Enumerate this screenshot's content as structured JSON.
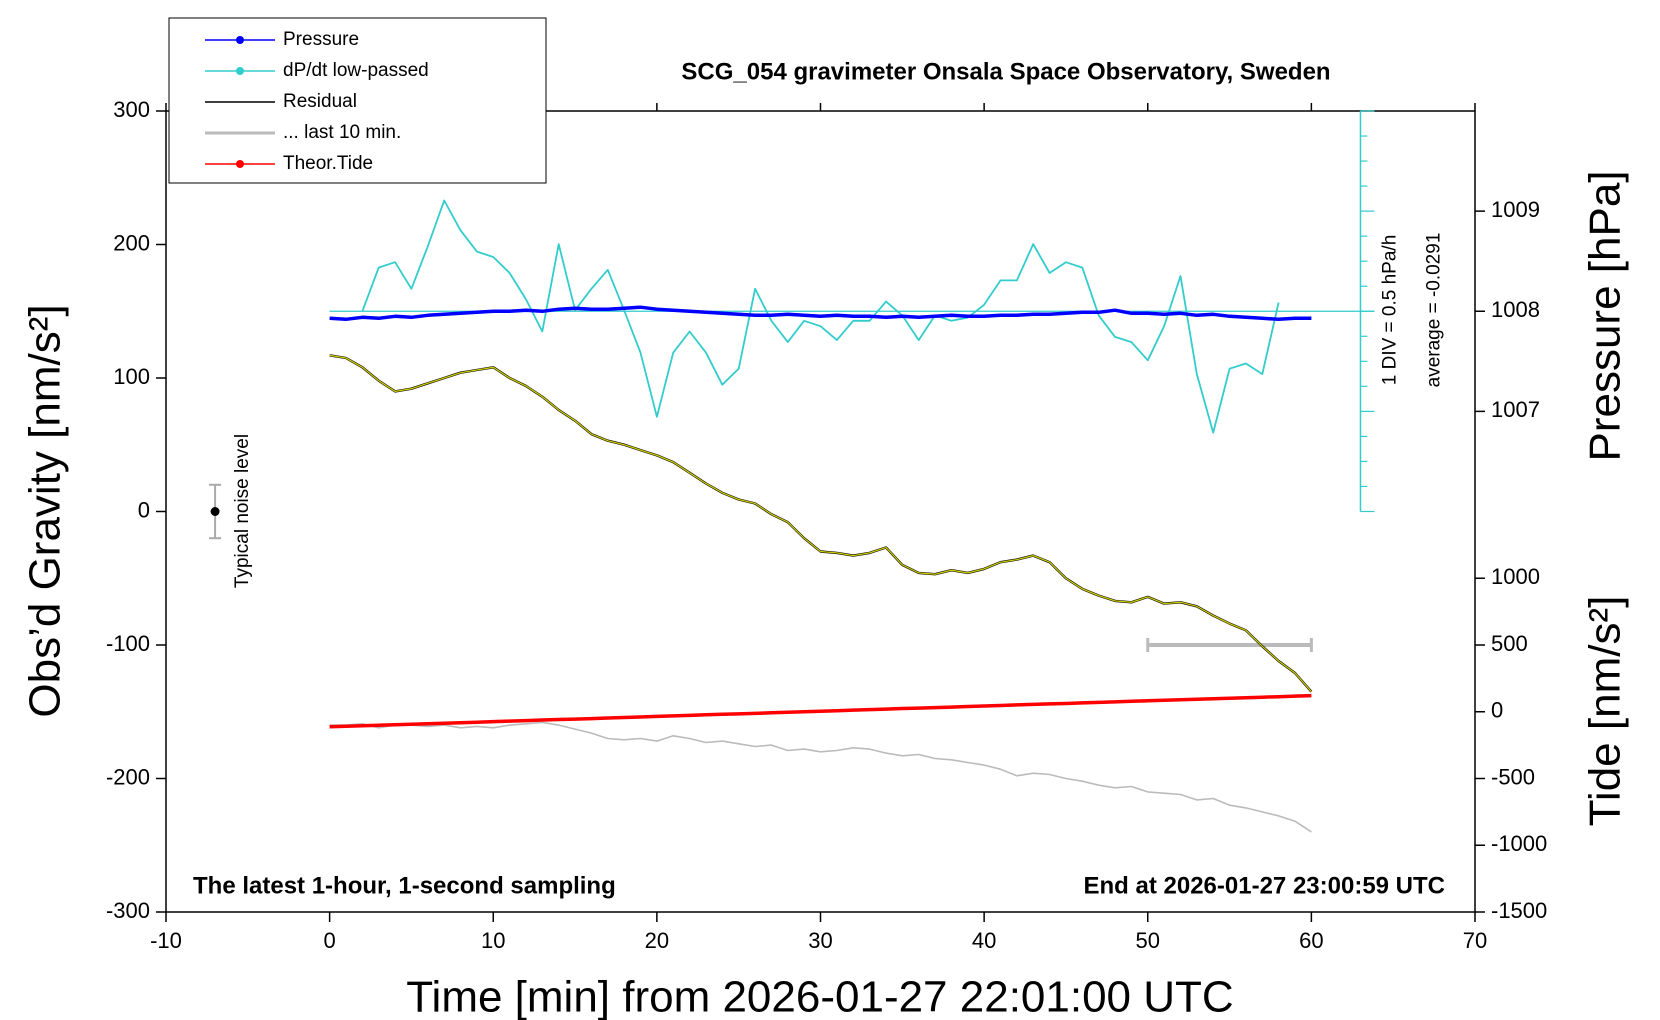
{
  "chart_data": {
    "type": "line",
    "title": "SCG_054 gravimeter Onsala Space Observatory, Sweden",
    "xlabel": "Time [min] from 2026-01-27 22:01:00 UTC",
    "ylabel": "Obs’d Gravity [nm/s²]",
    "y2label": "Pressure [hPa]",
    "y3label": "Tide [nm/s²]",
    "xlim": [
      -10,
      70
    ],
    "xticks": [
      -10,
      0,
      10,
      20,
      30,
      40,
      50,
      60,
      70
    ],
    "ylim": [
      -300,
      300
    ],
    "yticks": [
      -300,
      -200,
      -100,
      0,
      100,
      200,
      300
    ],
    "y2lim": [
      1006,
      1010
    ],
    "y2ticks": [
      1007,
      1008,
      1009
    ],
    "y3lim": [
      -1500,
      1500
    ],
    "y3ticks": [
      -1500,
      -1000,
      -500,
      0,
      500,
      1000
    ],
    "y4lim": [
      -1.0291,
      0.9709
    ],
    "y4_axis_x": 63,
    "y4_division_note": "1 DIV = 0.5 hPa/h",
    "y4_average": {
      "value": -0.0291,
      "label": "average = -0.0291"
    },
    "noise_level": {
      "x": -7,
      "value": 0,
      "error": 20,
      "label": "Typical noise level"
    },
    "last_10min": {
      "name": "... last 10 min.",
      "color": "#bbbbbb",
      "x": [
        50,
        60
      ],
      "y": -100
    },
    "note_left": "The latest 1-hour, 1-second sampling",
    "note_right": "End at 2026-01-27 23:00:59 UTC",
    "x": [
      0,
      1,
      2,
      3,
      4,
      5,
      6,
      7,
      8,
      9,
      10,
      11,
      12,
      13,
      14,
      15,
      16,
      17,
      18,
      19,
      20,
      21,
      22,
      23,
      24,
      25,
      26,
      27,
      28,
      29,
      30,
      31,
      32,
      33,
      34,
      35,
      36,
      37,
      38,
      39,
      40,
      41,
      42,
      43,
      44,
      45,
      46,
      47,
      48,
      49,
      50,
      51,
      52,
      53,
      54,
      55,
      56,
      57,
      58,
      59,
      60
    ],
    "series": [
      {
        "name": "Pressure",
        "color": "#0000ff",
        "axis": "y2",
        "values": [
          1007.93,
          1007.92,
          1007.94,
          1007.93,
          1007.95,
          1007.94,
          1007.96,
          1007.97,
          1007.98,
          1007.99,
          1008.0,
          1008.0,
          1008.01,
          1008.0,
          1008.02,
          1008.03,
          1008.02,
          1008.02,
          1008.03,
          1008.04,
          1008.02,
          1008.01,
          1008.0,
          1007.99,
          1007.98,
          1007.97,
          1007.96,
          1007.96,
          1007.97,
          1007.96,
          1007.95,
          1007.96,
          1007.95,
          1007.95,
          1007.94,
          1007.95,
          1007.94,
          1007.95,
          1007.96,
          1007.95,
          1007.95,
          1007.96,
          1007.96,
          1007.97,
          1007.97,
          1007.98,
          1007.99,
          1007.99,
          1008.01,
          1007.98,
          1007.98,
          1007.97,
          1007.98,
          1007.96,
          1007.97,
          1007.95,
          1007.94,
          1007.93,
          1007.92,
          1007.93,
          1007.93
        ]
      },
      {
        "name": "dP/dt low-passed",
        "color": "#33cccc",
        "axis": "y4",
        "values": [
          null,
          null,
          -0.029,
          0.189,
          0.216,
          0.083,
          0.295,
          0.524,
          0.375,
          0.269,
          0.242,
          0.162,
          0.03,
          -0.13,
          0.306,
          -0.024,
          0.083,
          0.178,
          -0.024,
          -0.236,
          -0.556,
          -0.236,
          -0.13,
          -0.236,
          -0.396,
          -0.316,
          0.083,
          -0.077,
          -0.183,
          -0.077,
          -0.104,
          -0.173,
          -0.077,
          -0.077,
          0.019,
          -0.05,
          -0.173,
          -0.05,
          -0.077,
          -0.061,
          0.003,
          0.125,
          0.125,
          0.306,
          0.162,
          0.216,
          0.189,
          -0.05,
          -0.157,
          -0.183,
          -0.274,
          -0.104,
          0.147,
          -0.343,
          -0.635,
          -0.316,
          -0.29,
          -0.343,
          0.014,
          null,
          null
        ]
      },
      {
        "name": "Residual",
        "color": "#000000",
        "overlay_color": "#cccc00",
        "values": [
          117,
          115,
          108,
          98,
          90,
          92,
          96,
          100,
          104,
          106,
          108,
          100,
          94,
          86,
          76,
          68,
          58,
          53,
          50,
          46,
          42,
          37,
          29,
          21,
          14,
          9,
          6,
          -2,
          -8,
          -20,
          -30,
          -31,
          -33,
          -31,
          -27,
          -40,
          -46,
          -47,
          -44,
          -46,
          -43,
          -38,
          -36,
          -33,
          -38,
          -50,
          -58,
          -63,
          -67,
          -68,
          -64,
          -69,
          -68,
          -71,
          -78,
          -84,
          -89,
          -101,
          -112,
          -121,
          -135
        ]
      },
      {
        "color": "#bbbbbb",
        "values": [
          -160,
          -160,
          -159,
          -162,
          -160,
          -160,
          -161,
          -160,
          -162,
          -161,
          -162,
          -160,
          -159,
          -158,
          -160,
          -163,
          -166,
          -170,
          -171,
          -170,
          -172,
          -168,
          -170,
          -173,
          -172,
          -174,
          -176,
          -175,
          -179,
          -178,
          -180,
          -179,
          -177,
          -178,
          -181,
          -183,
          -182,
          -185,
          -186,
          -188,
          -190,
          -193,
          -198,
          -196,
          -197,
          -200,
          -202,
          -205,
          -207,
          -206,
          -210,
          -211,
          -212,
          -216,
          -215,
          -220,
          -222,
          -225,
          -228,
          -232,
          -240
        ]
      },
      {
        "name": "Theor.Tide",
        "color": "#ff0000",
        "axis": "y3",
        "values": [
          -113,
          -109,
          -105,
          -101,
          -97,
          -94,
          -90,
          -86,
          -82,
          -78,
          -74,
          -70,
          -66,
          -62,
          -58,
          -55,
          -51,
          -47,
          -43,
          -39,
          -35,
          -31,
          -27,
          -23,
          -19,
          -16,
          -12,
          -8,
          -4,
          0,
          4,
          8,
          12,
          16,
          20,
          24,
          27,
          31,
          35,
          39,
          43,
          47,
          51,
          55,
          59,
          62,
          66,
          70,
          74,
          78,
          82,
          86,
          90,
          94,
          98,
          101,
          105,
          109,
          113,
          117,
          121
        ]
      }
    ]
  }
}
